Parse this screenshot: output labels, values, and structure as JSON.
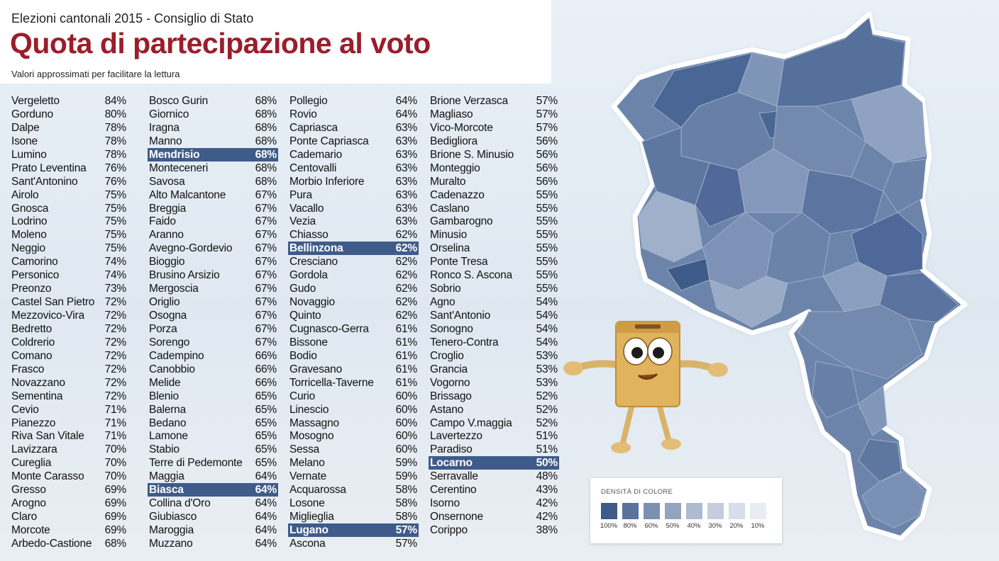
{
  "header": {
    "kicker": "Elezioni cantonali 2015 - Consiglio di Stato",
    "title": "Quota di partecipazione al voto",
    "note": "Valori approssimati per facilitare la lettura"
  },
  "columns": [
    [
      {
        "name": "Vergeletto",
        "pct": "84%"
      },
      {
        "name": "Gorduno",
        "pct": "80%"
      },
      {
        "name": "Dalpe",
        "pct": "78%"
      },
      {
        "name": "Isone",
        "pct": "78%"
      },
      {
        "name": "Lumino",
        "pct": "78%"
      },
      {
        "name": "Prato Leventina",
        "pct": "76%"
      },
      {
        "name": "Sant'Antonino",
        "pct": "76%"
      },
      {
        "name": "Airolo",
        "pct": "75%"
      },
      {
        "name": "Gnosca",
        "pct": "75%"
      },
      {
        "name": "Lodrino",
        "pct": "75%"
      },
      {
        "name": "Moleno",
        "pct": "75%"
      },
      {
        "name": "Neggio",
        "pct": "75%"
      },
      {
        "name": "Camorino",
        "pct": "74%"
      },
      {
        "name": "Personico",
        "pct": "74%"
      },
      {
        "name": "Preonzo",
        "pct": "73%"
      },
      {
        "name": "Castel San Pietro",
        "pct": "72%"
      },
      {
        "name": "Mezzovico-Vira",
        "pct": "72%"
      },
      {
        "name": "Bedretto",
        "pct": "72%"
      },
      {
        "name": "Coldrerio",
        "pct": "72%"
      },
      {
        "name": "Comano",
        "pct": "72%"
      },
      {
        "name": "Frasco",
        "pct": "72%"
      },
      {
        "name": "Novazzano",
        "pct": "72%"
      },
      {
        "name": "Sementina",
        "pct": "72%"
      },
      {
        "name": "Cevio",
        "pct": "71%"
      },
      {
        "name": "Pianezzo",
        "pct": "71%"
      },
      {
        "name": "Riva San Vitale",
        "pct": "71%"
      },
      {
        "name": "Lavizzara",
        "pct": "70%"
      },
      {
        "name": "Cureglia",
        "pct": "70%"
      },
      {
        "name": "Monte Carasso",
        "pct": "70%"
      },
      {
        "name": "Gresso",
        "pct": "69%"
      },
      {
        "name": "Arogno",
        "pct": "69%"
      },
      {
        "name": "Claro",
        "pct": "69%"
      },
      {
        "name": "Morcote",
        "pct": "69%"
      },
      {
        "name": "Arbedo-Castione",
        "pct": "68%"
      }
    ],
    [
      {
        "name": "Bosco Gurin",
        "pct": "68%"
      },
      {
        "name": "Giornico",
        "pct": "68%"
      },
      {
        "name": "Iragna",
        "pct": "68%"
      },
      {
        "name": "Manno",
        "pct": "68%"
      },
      {
        "name": "Mendrisio",
        "pct": "68%",
        "highlight": true
      },
      {
        "name": "Monteceneri",
        "pct": "68%"
      },
      {
        "name": "Savosa",
        "pct": "68%"
      },
      {
        "name": "Alto Malcantone",
        "pct": "67%"
      },
      {
        "name": "Breggia",
        "pct": "67%"
      },
      {
        "name": "Faido",
        "pct": "67%"
      },
      {
        "name": "Aranno",
        "pct": "67%"
      },
      {
        "name": "Avegno-Gordevio",
        "pct": "67%"
      },
      {
        "name": "Bioggio",
        "pct": "67%"
      },
      {
        "name": "Brusino Arsizio",
        "pct": "67%"
      },
      {
        "name": "Mergoscia",
        "pct": "67%"
      },
      {
        "name": "Origlio",
        "pct": "67%"
      },
      {
        "name": "Osogna",
        "pct": "67%"
      },
      {
        "name": "Porza",
        "pct": "67%"
      },
      {
        "name": "Sorengo",
        "pct": "67%"
      },
      {
        "name": "Cadempino",
        "pct": "66%"
      },
      {
        "name": "Canobbio",
        "pct": "66%"
      },
      {
        "name": "Melide",
        "pct": "66%"
      },
      {
        "name": "Blenio",
        "pct": "65%"
      },
      {
        "name": "Balerna",
        "pct": "65%"
      },
      {
        "name": "Bedano",
        "pct": "65%"
      },
      {
        "name": "Lamone",
        "pct": "65%"
      },
      {
        "name": "Stabio",
        "pct": "65%"
      },
      {
        "name": "Terre di Pedemonte",
        "pct": "65%"
      },
      {
        "name": "Maggia",
        "pct": "64%"
      },
      {
        "name": "Biasca",
        "pct": "64%",
        "highlight": true
      },
      {
        "name": "Collina d'Oro",
        "pct": "64%"
      },
      {
        "name": "Giubiasco",
        "pct": "64%"
      },
      {
        "name": "Maroggia",
        "pct": "64%"
      },
      {
        "name": "Muzzano",
        "pct": "64%"
      }
    ],
    [
      {
        "name": "Pollegio",
        "pct": "64%"
      },
      {
        "name": "Rovio",
        "pct": "64%"
      },
      {
        "name": "Capriasca",
        "pct": "63%"
      },
      {
        "name": "Ponte Capriasca",
        "pct": "63%"
      },
      {
        "name": "Cademario",
        "pct": "63%"
      },
      {
        "name": "Centovalli",
        "pct": "63%"
      },
      {
        "name": "Morbio Inferiore",
        "pct": "63%"
      },
      {
        "name": "Pura",
        "pct": "63%"
      },
      {
        "name": "Vacallo",
        "pct": "63%"
      },
      {
        "name": "Vezia",
        "pct": "63%"
      },
      {
        "name": "Chiasso",
        "pct": "62%"
      },
      {
        "name": "Bellinzona",
        "pct": "62%",
        "highlight": true
      },
      {
        "name": "Cresciano",
        "pct": "62%"
      },
      {
        "name": "Gordola",
        "pct": "62%"
      },
      {
        "name": "Gudo",
        "pct": "62%"
      },
      {
        "name": "Novaggio",
        "pct": "62%"
      },
      {
        "name": "Quinto",
        "pct": "62%"
      },
      {
        "name": "Cugnasco-Gerra",
        "pct": "61%"
      },
      {
        "name": "Bissone",
        "pct": "61%"
      },
      {
        "name": "Bodio",
        "pct": "61%"
      },
      {
        "name": "Gravesano",
        "pct": "61%"
      },
      {
        "name": "Torricella-Taverne",
        "pct": "61%"
      },
      {
        "name": "Curio",
        "pct": "60%"
      },
      {
        "name": "Linescio",
        "pct": "60%"
      },
      {
        "name": "Massagno",
        "pct": "60%"
      },
      {
        "name": "Mosogno",
        "pct": "60%"
      },
      {
        "name": "Sessa",
        "pct": "60%"
      },
      {
        "name": "Melano",
        "pct": "59%"
      },
      {
        "name": "Vernate",
        "pct": "59%"
      },
      {
        "name": "Acquarossa",
        "pct": "58%"
      },
      {
        "name": "Losone",
        "pct": "58%"
      },
      {
        "name": "Miglieglia",
        "pct": "58%"
      },
      {
        "name": "Lugano",
        "pct": "57%",
        "highlight": true
      },
      {
        "name": "Ascona",
        "pct": "57%"
      }
    ],
    [
      {
        "name": "Brione Verzasca",
        "pct": "57%"
      },
      {
        "name": "Magliaso",
        "pct": "57%"
      },
      {
        "name": "Vico-Morcote",
        "pct": "57%"
      },
      {
        "name": "Bedigliora",
        "pct": "56%"
      },
      {
        "name": "Brione S. Minusio",
        "pct": "56%"
      },
      {
        "name": "Monteggio",
        "pct": "56%"
      },
      {
        "name": "Muralto",
        "pct": "56%"
      },
      {
        "name": "Cadenazzo",
        "pct": "55%"
      },
      {
        "name": "Caslano",
        "pct": "55%"
      },
      {
        "name": "Gambarogno",
        "pct": "55%"
      },
      {
        "name": "Minusio",
        "pct": "55%"
      },
      {
        "name": "Orselina",
        "pct": "55%"
      },
      {
        "name": "Ponte Tresa",
        "pct": "55%"
      },
      {
        "name": "Ronco S. Ascona",
        "pct": "55%"
      },
      {
        "name": "Sobrio",
        "pct": "55%"
      },
      {
        "name": "Agno",
        "pct": "54%"
      },
      {
        "name": "Sant'Antonio",
        "pct": "54%"
      },
      {
        "name": "Sonogno",
        "pct": "54%"
      },
      {
        "name": "Tenero-Contra",
        "pct": "54%"
      },
      {
        "name": "Croglio",
        "pct": "53%"
      },
      {
        "name": "Grancia",
        "pct": "53%"
      },
      {
        "name": "Vogorno",
        "pct": "53%"
      },
      {
        "name": "Brissago",
        "pct": "52%"
      },
      {
        "name": "Astano",
        "pct": "52%"
      },
      {
        "name": "Campo V.maggia",
        "pct": "52%"
      },
      {
        "name": "Lavertezzo",
        "pct": "51%"
      },
      {
        "name": "Paradiso",
        "pct": "51%"
      },
      {
        "name": "Locarno",
        "pct": "50%",
        "highlight": true
      },
      {
        "name": "Serravalle",
        "pct": "48%"
      },
      {
        "name": "Cerentino",
        "pct": "43%"
      },
      {
        "name": "Isorno",
        "pct": "42%"
      },
      {
        "name": "Onsernone",
        "pct": "42%"
      },
      {
        "name": "Corippo",
        "pct": "38%"
      }
    ]
  ],
  "legend": {
    "title": "DENSITÀ DI COLORE",
    "swatches": [
      {
        "label": "100%",
        "color": "#3e5a88"
      },
      {
        "label": "80%",
        "color": "#5a739d"
      },
      {
        "label": "60%",
        "color": "#7b8fb1"
      },
      {
        "label": "50%",
        "color": "#94a4c0"
      },
      {
        "label": "40%",
        "color": "#aebad0"
      },
      {
        "label": "30%",
        "color": "#c3cddd"
      },
      {
        "label": "20%",
        "color": "#d7dee9"
      },
      {
        "label": "10%",
        "color": "#e9edf3"
      }
    ]
  },
  "colors": {
    "title": "#9b1d2b",
    "highlight_row": "#3f5b8a",
    "map_dark": "#4a6694",
    "map_mid": "#6d84aa",
    "map_light": "#98a9c6"
  }
}
